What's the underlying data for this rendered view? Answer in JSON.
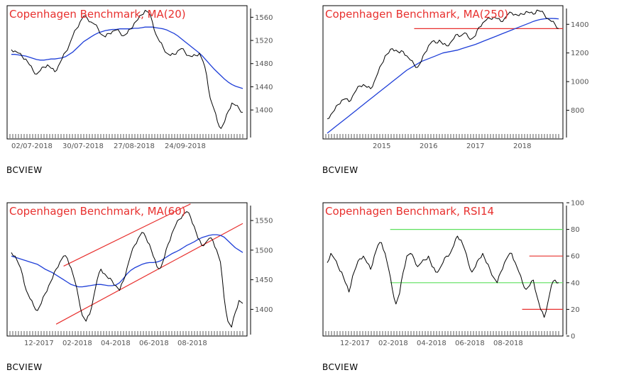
{
  "brand_label": "BCVIEW",
  "colors": {
    "price": "#000000",
    "ma": "#1f3fd8",
    "trend": "#e8302e",
    "level": "#5de05d",
    "frame": "#000000",
    "title": "#e8302e"
  },
  "chart_data": [
    {
      "type": "line",
      "title": "Copenhagen Benchmark, MA(20)",
      "xlabel": "",
      "ylabel": "",
      "x_ticks": [
        "02/07-2018",
        "30/07-2018",
        "27/08-2018",
        "24/09-2018"
      ],
      "y_ticks": [
        1560,
        1520,
        1480,
        1440,
        1400
      ],
      "ylim": [
        1350,
        1580
      ],
      "grid": false,
      "series": [
        {
          "role": "price",
          "values": [
            1504,
            1502,
            1498,
            1492,
            1488,
            1478,
            1468,
            1462,
            1468,
            1474,
            1478,
            1472,
            1466,
            1476,
            1488,
            1500,
            1512,
            1528,
            1540,
            1552,
            1562,
            1558,
            1552,
            1548,
            1540,
            1530,
            1526,
            1532,
            1536,
            1538,
            1534,
            1528,
            1532,
            1540,
            1550,
            1556,
            1564,
            1572,
            1568,
            1552,
            1530,
            1518,
            1508,
            1498,
            1494,
            1496,
            1502,
            1506,
            1500,
            1494,
            1492,
            1494,
            1498,
            1484,
            1460,
            1420,
            1402,
            1380,
            1368,
            1380,
            1398,
            1412,
            1408,
            1402,
            1396
          ]
        },
        {
          "role": "ma",
          "values": [
            1496,
            1496,
            1495,
            1494,
            1493,
            1491,
            1489,
            1487,
            1486,
            1486,
            1487,
            1488,
            1488,
            1489,
            1490,
            1492,
            1496,
            1500,
            1506,
            1512,
            1518,
            1522,
            1526,
            1530,
            1533,
            1535,
            1537,
            1538,
            1539,
            1539,
            1540,
            1540,
            1540,
            1540,
            1541,
            1541,
            1542,
            1543,
            1543,
            1543,
            1542,
            1541,
            1540,
            1538,
            1535,
            1532,
            1528,
            1523,
            1518,
            1513,
            1508,
            1503,
            1498,
            1492,
            1485,
            1478,
            1471,
            1465,
            1459,
            1453,
            1448,
            1444,
            1441,
            1439,
            1437
          ]
        }
      ],
      "hlines": []
    },
    {
      "type": "line",
      "title": "Copenhagen Benchmark, MA(250)",
      "xlabel": "",
      "ylabel": "",
      "x_ticks": [
        "2015",
        "2016",
        "2017",
        "2018"
      ],
      "y_ticks": [
        1400,
        1200,
        1000,
        800
      ],
      "ylim": [
        600,
        1530
      ],
      "grid": false,
      "series": [
        {
          "role": "price",
          "values": [
            740,
            770,
            800,
            840,
            870,
            880,
            860,
            900,
            940,
            970,
            980,
            960,
            950,
            1000,
            1060,
            1120,
            1180,
            1200,
            1230,
            1220,
            1200,
            1210,
            1180,
            1150,
            1120,
            1100,
            1140,
            1200,
            1250,
            1280,
            1270,
            1290,
            1260,
            1250,
            1270,
            1300,
            1330,
            1320,
            1340,
            1310,
            1300,
            1320,
            1380,
            1410,
            1430,
            1440,
            1450,
            1440,
            1420,
            1440,
            1470,
            1480,
            1470,
            1460,
            1470,
            1490,
            1480,
            1470,
            1500,
            1490,
            1470,
            1440,
            1420,
            1400,
            1370
          ]
        },
        {
          "role": "ma",
          "values": [
            640,
            660,
            680,
            700,
            720,
            740,
            760,
            780,
            800,
            820,
            840,
            860,
            880,
            900,
            920,
            940,
            960,
            980,
            1000,
            1020,
            1040,
            1060,
            1080,
            1095,
            1110,
            1125,
            1140,
            1150,
            1160,
            1170,
            1180,
            1190,
            1200,
            1205,
            1210,
            1215,
            1220,
            1228,
            1236,
            1244,
            1252,
            1260,
            1270,
            1280,
            1290,
            1300,
            1310,
            1320,
            1330,
            1340,
            1350,
            1360,
            1370,
            1380,
            1390,
            1400,
            1410,
            1420,
            1428,
            1434,
            1438,
            1440,
            1441,
            1440,
            1438
          ]
        }
      ],
      "hlines": [
        {
          "value": 1370,
          "from": 0.38,
          "to": 1.0,
          "role": "trend"
        }
      ]
    },
    {
      "type": "line",
      "title": "Copenhagen Benchmark, MA(60)",
      "xlabel": "",
      "ylabel": "",
      "x_ticks": [
        "12-2017",
        "02-2018",
        "04-2018",
        "06-2018",
        "08-2018"
      ],
      "y_ticks": [
        1550,
        1500,
        1450,
        1400
      ],
      "ylim": [
        1355,
        1580
      ],
      "grid": false,
      "series": [
        {
          "role": "price",
          "values": [
            1496,
            1490,
            1476,
            1458,
            1432,
            1418,
            1406,
            1398,
            1410,
            1426,
            1440,
            1452,
            1468,
            1480,
            1490,
            1486,
            1470,
            1448,
            1420,
            1390,
            1380,
            1392,
            1420,
            1450,
            1468,
            1460,
            1452,
            1448,
            1440,
            1432,
            1448,
            1470,
            1492,
            1508,
            1520,
            1530,
            1522,
            1510,
            1490,
            1472,
            1470,
            1488,
            1510,
            1528,
            1542,
            1552,
            1560,
            1565,
            1556,
            1540,
            1520,
            1508,
            1512,
            1520,
            1516,
            1500,
            1480,
            1420,
            1380,
            1370,
            1395,
            1415,
            1410
          ]
        },
        {
          "role": "ma",
          "values": [
            1490,
            1488,
            1486,
            1484,
            1482,
            1480,
            1478,
            1476,
            1472,
            1468,
            1465,
            1462,
            1458,
            1454,
            1450,
            1446,
            1442,
            1440,
            1438,
            1438,
            1439,
            1440,
            1441,
            1442,
            1442,
            1441,
            1440,
            1440,
            1441,
            1445,
            1452,
            1460,
            1466,
            1470,
            1473,
            1476,
            1478,
            1479,
            1479,
            1480,
            1482,
            1486,
            1490,
            1494,
            1497,
            1500,
            1504,
            1508,
            1511,
            1514,
            1518,
            1521,
            1523,
            1525,
            1526,
            1526,
            1525,
            1522,
            1516,
            1510,
            1504,
            1500,
            1496
          ]
        }
      ],
      "trendlines": [
        {
          "from_index": 14,
          "to_index": 48,
          "from_value": 1473,
          "to_value": 1578
        },
        {
          "from_index": 12,
          "to_index": 62,
          "from_value": 1375,
          "to_value": 1545
        }
      ]
    },
    {
      "type": "line",
      "title": "Copenhagen Benchmark, RSI14",
      "xlabel": "",
      "ylabel": "",
      "x_ticks": [
        "12-2017",
        "02-2018",
        "04-2018",
        "06-2018",
        "08-2018"
      ],
      "y_ticks": [
        100,
        80,
        60,
        40,
        20,
        0
      ],
      "ylim": [
        0,
        100
      ],
      "grid": false,
      "series": [
        {
          "role": "price",
          "values": [
            55,
            62,
            58,
            52,
            48,
            40,
            33,
            45,
            52,
            58,
            60,
            55,
            50,
            60,
            68,
            70,
            62,
            50,
            35,
            24,
            32,
            48,
            60,
            62,
            58,
            52,
            55,
            57,
            60,
            52,
            48,
            50,
            55,
            60,
            62,
            68,
            75,
            72,
            65,
            55,
            48,
            52,
            58,
            62,
            55,
            50,
            44,
            40,
            48,
            55,
            60,
            62,
            55,
            48,
            40,
            35,
            38,
            42,
            30,
            20,
            14,
            25,
            38,
            42,
            40
          ]
        }
      ],
      "hlines": [
        {
          "value": 80,
          "from": 0.28,
          "to": 1.0,
          "role": "level"
        },
        {
          "value": 40,
          "from": 0.28,
          "to": 1.0,
          "role": "level"
        },
        {
          "value": 60,
          "from": 0.86,
          "to": 1.0,
          "role": "trend"
        },
        {
          "value": 20,
          "from": 0.83,
          "to": 1.0,
          "role": "trend"
        }
      ]
    }
  ]
}
